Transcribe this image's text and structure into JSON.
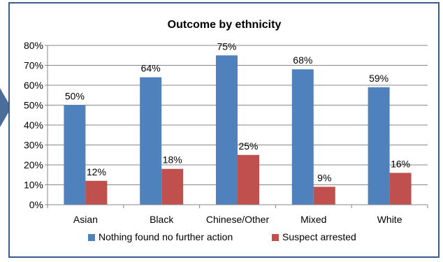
{
  "chart_data": {
    "type": "bar",
    "title": "Outcome by ethnicity",
    "xlabel": "",
    "ylabel": "",
    "ylim": [
      0,
      0.8
    ],
    "yticks": [
      "0%",
      "10%",
      "20%",
      "30%",
      "40%",
      "50%",
      "60%",
      "70%",
      "80%"
    ],
    "categories": [
      "Asian",
      "Black",
      "Chinese/Other",
      "Mixed",
      "White"
    ],
    "series": [
      {
        "name": "Nothing found no further action",
        "color": "#4f81bd",
        "values": [
          0.5,
          0.64,
          0.75,
          0.68,
          0.59
        ],
        "labels": [
          "50%",
          "64%",
          "75%",
          "68%",
          "59%"
        ]
      },
      {
        "name": "Suspect arrested",
        "color": "#c0504d",
        "values": [
          0.12,
          0.18,
          0.25,
          0.09,
          0.16
        ],
        "labels": [
          "12%",
          "18%",
          "25%",
          "9%",
          "16%"
        ]
      }
    ],
    "grid": true,
    "legend": "bottom"
  }
}
